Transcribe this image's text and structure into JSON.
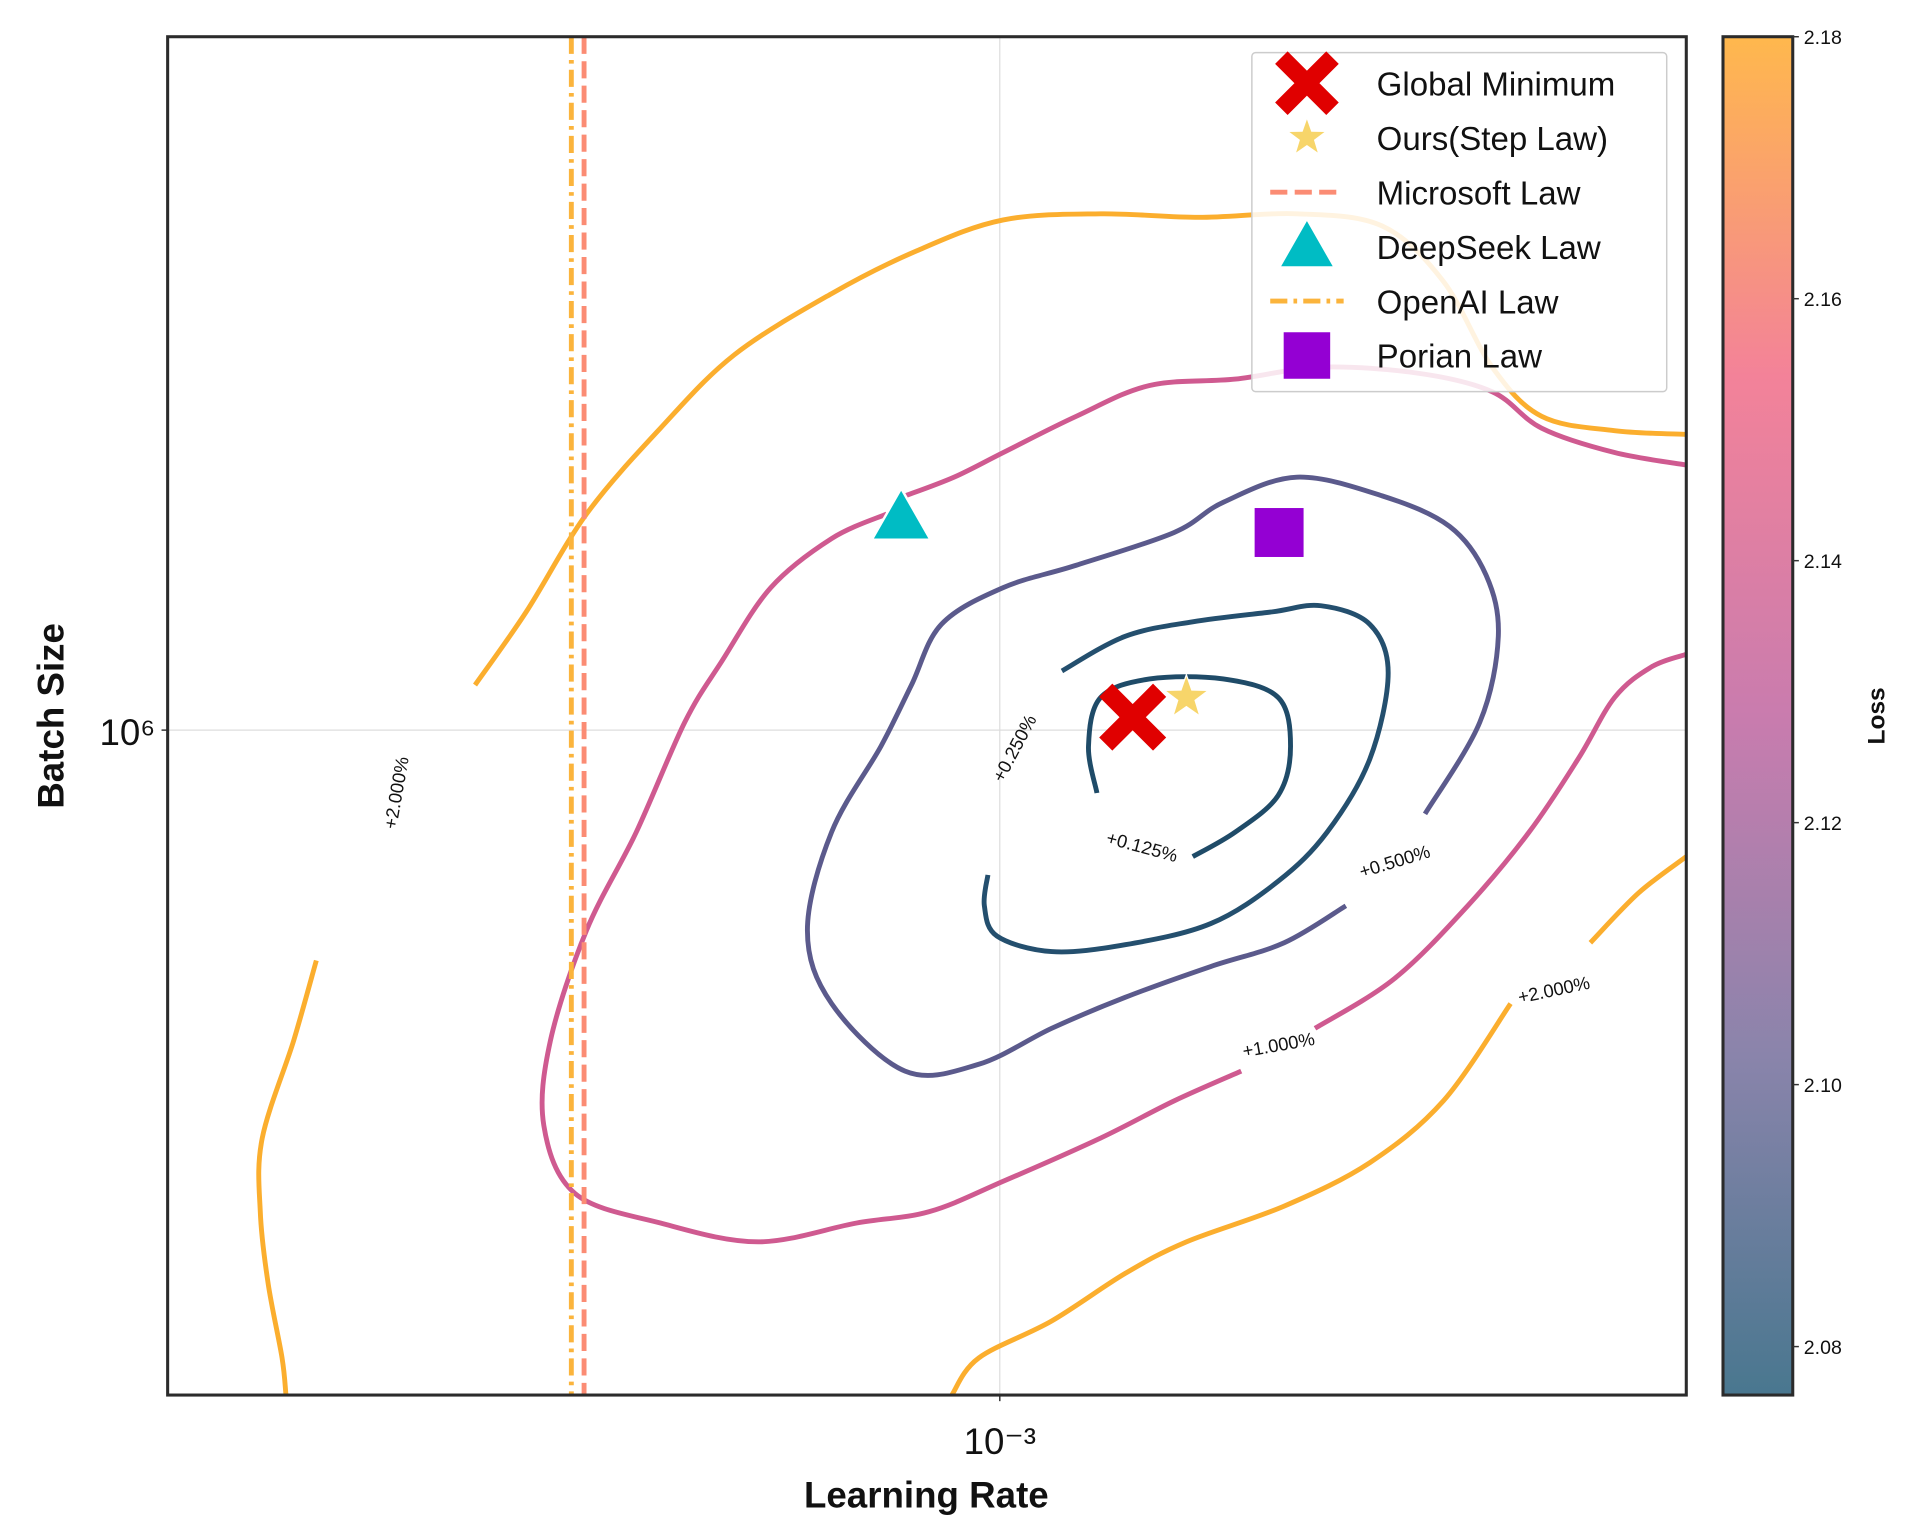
{
  "chart_data": {
    "type": "contour",
    "xlabel": "Learning Rate",
    "ylabel": "Batch Size",
    "xscale": "log",
    "yscale": "log",
    "xlim": [
      0.0003,
      0.0027
    ],
    "ylim": [
      400000,
      2600000
    ],
    "xticks": [
      {
        "value": 0.001,
        "label": "10⁻³"
      }
    ],
    "yticks": [
      {
        "value": 1000000,
        "label": "10⁶"
      }
    ],
    "grid": true,
    "legend": "upper right",
    "colorbar": {
      "label": "Loss",
      "lim": [
        2.0763,
        2.18
      ],
      "ticks": [
        2.08,
        {
          "value": 2.1,
          "label": "2.10"
        },
        2.12,
        2.14,
        2.16,
        2.18
      ],
      "colormap": [
        "#49778f",
        "#8a84ab",
        "#c97cae",
        "#f38299",
        "#ffb84d"
      ]
    },
    "contours": [
      {
        "label": "+0.125%",
        "color": "#1f4b68",
        "x": [
          0.001151,
          0.001137,
          0.001157,
          0.001242,
          0.001382,
          0.001496,
          0.001523,
          0.001496,
          0.001406,
          0.001322
        ],
        "y": [
          917000,
          978000,
          1046000,
          1073000,
          1073000,
          1046000,
          978000,
          914000,
          869000,
          840000
        ]
      },
      {
        "label": "+0.250%",
        "color": "#244f6e",
        "x": [
          0.001094,
          0.001199,
          0.001322,
          0.001483,
          0.001592,
          0.001708,
          0.001754,
          0.001708,
          0.001606,
          0.001496,
          0.001357,
          0.001199,
          0.001078,
          0.000996,
          0.000978,
          0.000983
        ],
        "y": [
          1085000,
          1138000,
          1161000,
          1177000,
          1187000,
          1157000,
          1082000,
          961000,
          869000,
          812000,
          766000,
          744000,
          737000,
          753000,
          785000,
          819000
        ]
      },
      {
        "label": "+0.500%",
        "color": "#5b5a8c",
        "x": [
          0.00185,
          0.002003,
          0.002057,
          0.002021,
          0.001917,
          0.001739,
          0.001537,
          0.001382,
          0.001287,
          0.001117,
          0.001005,
          0.000919,
          0.00088,
          0.000842,
          0.000784,
          0.000757,
          0.000784,
          0.000872,
          0.00097,
          0.001078,
          0.001199,
          0.001357,
          0.001509,
          0.00165
        ],
        "y": [
          891000,
          1011000,
          1138000,
          1238000,
          1324000,
          1381000,
          1417000,
          1369000,
          1313000,
          1255000,
          1217000,
          1157000,
          1064000,
          978000,
          869000,
          759000,
          686000,
          625000,
          631000,
          663000,
          692000,
          722000,
          746000,
          785000
        ]
      },
      {
        "label": "+1.000%",
        "color": "#cf5a90",
        "x": [
          0.0027,
          0.002434,
          0.00219,
          0.002039,
          0.001834,
          0.001592,
          0.001406,
          0.001242,
          0.001117,
          0.001005,
          0.000936,
          0.000872,
          null,
          0.000849,
          0.000784,
          0.000718,
          0.000669,
          0.000634,
          0.000591,
          0.00055,
          0.000522,
          0.000517,
          0.000541,
          0.000612,
          0.000705,
          0.000813,
          0.000903,
          0.001005,
          0.001157,
          0.001287,
          0.001418,
          null,
          0.001578,
          0.00177,
          0.001968,
          0.002151,
          0.002309,
          0.002434,
          0.002567,
          0.0027
        ],
        "y": [
          1441000,
          1466000,
          1516000,
          1594000,
          1635000,
          1649000,
          1622000,
          1608000,
          1541000,
          1466000,
          1417000,
          1381000,
          null,
          1347000,
          1302000,
          1217000,
          1100000,
          1011000,
          869000,
          759000,
          652000,
          580000,
          528000,
          507000,
          494000,
          507000,
          515000,
          537000,
          570000,
          600000,
          625000,
          null,
          663000,
          710000,
          785000,
          869000,
          961000,
          1046000,
          1091000,
          1110000
        ]
      },
      {
        "label": "+2.000%",
        "color": "#fbae2e",
        "x": [
          0.000468,
          0.000504,
          0.00055,
          0.000612,
          0.000681,
          0.000784,
          0.000887,
          0.001005,
          0.001157,
          0.001334,
          0.001537,
          0.001739,
          0.0019,
          0.002039,
          0.00219,
          0.002434,
          0.0027
        ],
        "y": [
          1064000,
          1177000,
          1347000,
          1516000,
          1677000,
          1825000,
          1936000,
          2020000,
          2037000,
          2027000,
          2037000,
          2003000,
          1856000,
          1649000,
          1541000,
          1511000,
          1503000
        ]
      },
      {
        "color": "#fbae2e",
        "x": [
          0.000372,
          0.00036,
          0.000344,
          0.000343,
          0.000347,
          0.000354,
          0.000356
        ],
        "y": [
          728000,
          652000,
          570000,
          515000,
          466000,
          421000,
          400000
        ]
      },
      {
        "label": "+2.000%",
        "color": "#fbae2e",
        "x": [
          0.000933,
          0.00097,
          0.001078,
          0.001199,
          0.00131,
          0.001509,
          0.001708,
          0.0019,
          0.002094,
          null,
          0.00235,
          0.00252,
          0.0027
        ],
        "y": [
          400000,
          421000,
          443000,
          473000,
          494000,
          519000,
          551000,
          600000,
          686000,
          null,
          746000,
          799000,
          840000
        ]
      }
    ],
    "series": [
      {
        "name": "Global Minimum",
        "color": "#e00000",
        "marker": "x",
        "x": 0.001212,
        "y": 1018000
      },
      {
        "name": "Ours(Step Law)",
        "color": "#f7d56a",
        "marker": "star",
        "x": 0.00131,
        "y": 1046000
      },
      {
        "name": "Microsoft Law",
        "color": "#fb8c74",
        "linestyle": "dashed",
        "x": 0.000548
      },
      {
        "name": "DeepSeek Law",
        "color": "#00bcc4",
        "marker": "triangle",
        "x": 0.000867,
        "y": 1340000
      },
      {
        "name": "OpenAI Law",
        "color": "#fbb43c",
        "linestyle": "dashdot",
        "x": 0.000538
      },
      {
        "name": "Porian Law",
        "color": "#9400d3",
        "marker": "square",
        "x": 0.001498,
        "y": 1313000
      }
    ]
  }
}
